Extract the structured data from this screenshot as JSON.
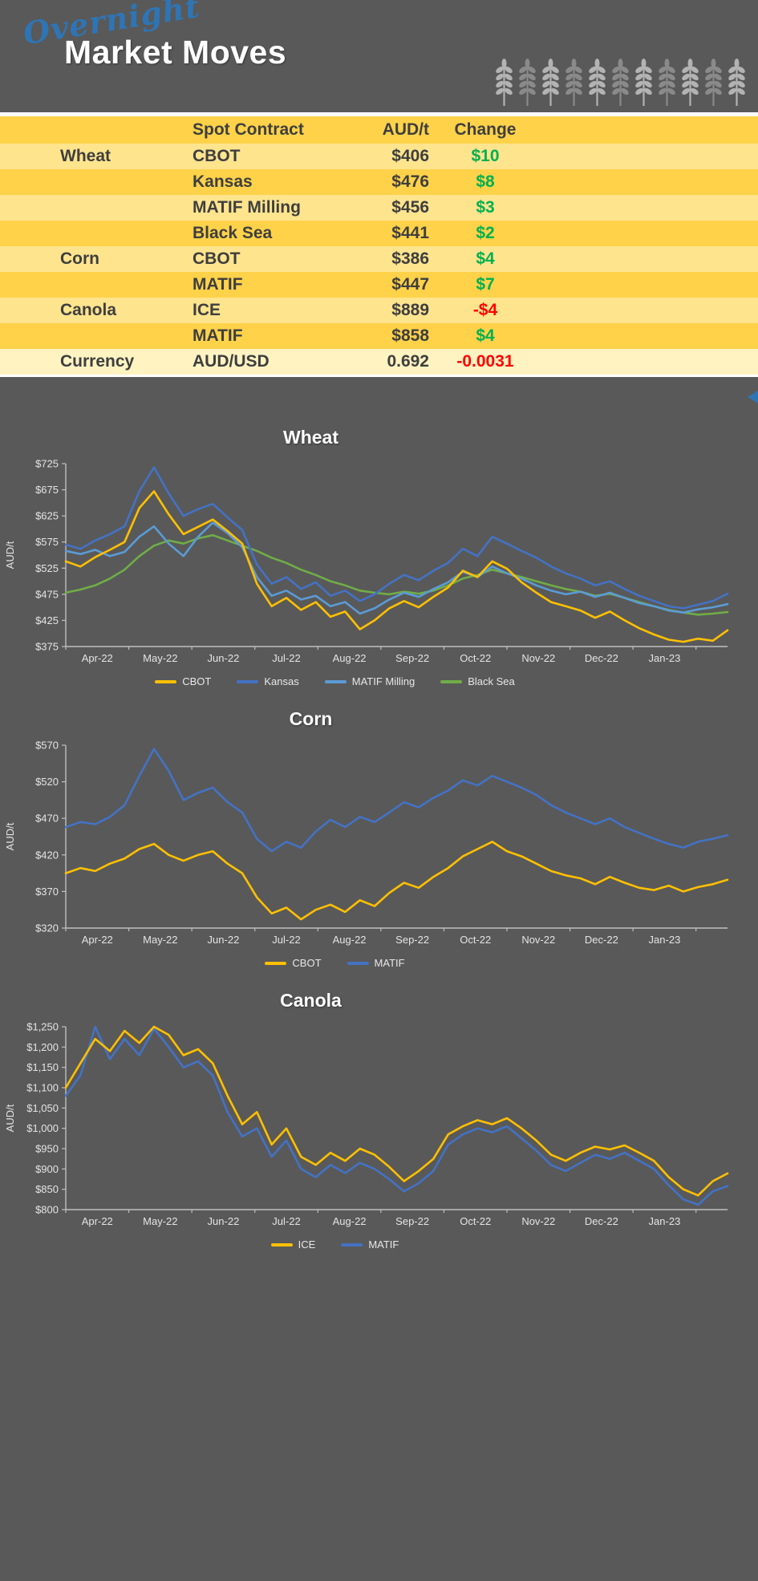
{
  "header": {
    "script_title": "Overnight",
    "main_title": "Market Moves",
    "wheat_icons": {
      "count": 11,
      "color_light": "#B3B3B3",
      "color_dark": "#8A8A8A"
    }
  },
  "table": {
    "header": {
      "spot_contract": "Spot Contract",
      "price": "AUD/t",
      "change": "Change"
    },
    "rows": [
      {
        "commodity": "Wheat",
        "contract": "CBOT",
        "price": "$406",
        "change": "$10",
        "direction": "up",
        "band": "light"
      },
      {
        "commodity": "",
        "contract": "Kansas",
        "price": "$476",
        "change": "$8",
        "direction": "up",
        "band": "gold"
      },
      {
        "commodity": "",
        "contract": "MATIF Milling",
        "price": "$456",
        "change": "$3",
        "direction": "up",
        "band": "light"
      },
      {
        "commodity": "",
        "contract": "Black Sea",
        "price": "$441",
        "change": "$2",
        "direction": "up",
        "band": "gold"
      },
      {
        "commodity": "Corn",
        "contract": "CBOT",
        "price": "$386",
        "change": "$4",
        "direction": "up",
        "band": "light"
      },
      {
        "commodity": "",
        "contract": "MATIF",
        "price": "$447",
        "change": "$7",
        "direction": "up",
        "band": "gold"
      },
      {
        "commodity": "Canola",
        "contract": "ICE",
        "price": "$889",
        "change": "-$4",
        "direction": "down",
        "band": "light"
      },
      {
        "commodity": "",
        "contract": "MATIF",
        "price": "$858",
        "change": "$4",
        "direction": "up",
        "band": "gold"
      },
      {
        "commodity": "Currency",
        "contract": "AUD/USD",
        "price": "0.692",
        "change": "-0.0031",
        "direction": "down",
        "band": "pale"
      }
    ],
    "colors": {
      "header": "#FFD24A",
      "gold": "#FFD24A",
      "light": "#FFE48E",
      "pale": "#FFF3C2",
      "text": "#3E3E3E",
      "up": "#00B050",
      "down": "#FF0000"
    }
  },
  "chart_data": [
    {
      "type": "line",
      "title": "Wheat",
      "ylabel": "AUD/t",
      "ylim": [
        375,
        725
      ],
      "ytick_step": 50,
      "tick_prefix": "$",
      "grid": false,
      "legend_position": "bottom",
      "x_labels": [
        "Apr-22",
        "May-22",
        "Jun-22",
        "Jul-22",
        "Aug-22",
        "Sep-22",
        "Oct-22",
        "Nov-22",
        "Dec-22",
        "Jan-23"
      ],
      "x_span_months": 10.5,
      "series": [
        {
          "name": "CBOT",
          "color": "#FFC000",
          "values": [
            538,
            528,
            546,
            560,
            575,
            640,
            672,
            628,
            590,
            604,
            618,
            596,
            572,
            495,
            452,
            468,
            445,
            460,
            432,
            442,
            408,
            425,
            448,
            462,
            450,
            470,
            488,
            520,
            508,
            538,
            524,
            498,
            478,
            460,
            452,
            444,
            430,
            442,
            425,
            410,
            398,
            388,
            384,
            390,
            386,
            406
          ]
        },
        {
          "name": "Kansas",
          "color": "#4472C4",
          "values": [
            570,
            562,
            578,
            590,
            605,
            672,
            718,
            668,
            625,
            638,
            648,
            622,
            598,
            532,
            495,
            508,
            485,
            498,
            472,
            482,
            462,
            475,
            495,
            512,
            502,
            520,
            535,
            562,
            548,
            585,
            572,
            558,
            545,
            528,
            515,
            505,
            492,
            500,
            485,
            472,
            462,
            452,
            448,
            455,
            462,
            476
          ]
        },
        {
          "name": "MATIF Milling",
          "color": "#5B9BD5",
          "values": [
            558,
            552,
            560,
            548,
            556,
            585,
            605,
            572,
            548,
            585,
            612,
            592,
            565,
            508,
            472,
            482,
            465,
            472,
            452,
            460,
            438,
            448,
            465,
            478,
            470,
            485,
            498,
            518,
            508,
            528,
            515,
            505,
            492,
            482,
            475,
            480,
            470,
            478,
            468,
            458,
            452,
            444,
            440,
            446,
            450,
            456
          ]
        },
        {
          "name": "Black Sea",
          "color": "#70AD47",
          "values": [
            478,
            484,
            492,
            505,
            522,
            548,
            568,
            578,
            572,
            582,
            588,
            578,
            568,
            558,
            545,
            535,
            522,
            512,
            500,
            492,
            482,
            478,
            475,
            480,
            476,
            482,
            492,
            505,
            512,
            522,
            515,
            508,
            500,
            492,
            485,
            480,
            472,
            476,
            468,
            460,
            452,
            445,
            440,
            436,
            438,
            441
          ]
        }
      ]
    },
    {
      "type": "line",
      "title": "Corn",
      "ylabel": "AUD/t",
      "ylim": [
        320,
        570
      ],
      "ytick_step": 50,
      "tick_prefix": "$",
      "grid": false,
      "legend_position": "bottom",
      "x_labels": [
        "Apr-22",
        "May-22",
        "Jun-22",
        "Jul-22",
        "Aug-22",
        "Sep-22",
        "Oct-22",
        "Nov-22",
        "Dec-22",
        "Jan-23"
      ],
      "x_span_months": 10.5,
      "series": [
        {
          "name": "CBOT",
          "color": "#FFC000",
          "values": [
            395,
            402,
            398,
            408,
            415,
            428,
            435,
            420,
            412,
            420,
            425,
            408,
            395,
            362,
            340,
            348,
            332,
            345,
            352,
            342,
            358,
            350,
            368,
            382,
            375,
            390,
            402,
            418,
            428,
            438,
            425,
            418,
            408,
            398,
            392,
            388,
            380,
            390,
            382,
            375,
            372,
            378,
            370,
            376,
            380,
            386
          ]
        },
        {
          "name": "MATIF",
          "color": "#4472C4",
          "values": [
            458,
            465,
            462,
            472,
            488,
            528,
            565,
            535,
            495,
            505,
            512,
            492,
            478,
            442,
            425,
            438,
            430,
            452,
            468,
            458,
            472,
            465,
            478,
            492,
            485,
            498,
            508,
            522,
            515,
            528,
            520,
            512,
            502,
            488,
            478,
            470,
            462,
            470,
            458,
            450,
            442,
            435,
            430,
            438,
            442,
            447
          ]
        }
      ]
    },
    {
      "type": "line",
      "title": "Canola",
      "ylabel": "AUD/t",
      "ylim": [
        800,
        1250
      ],
      "ytick_step": 50,
      "tick_prefix": "$",
      "grid": false,
      "legend_position": "bottom",
      "x_labels": [
        "Apr-22",
        "May-22",
        "Jun-22",
        "Jul-22",
        "Aug-22",
        "Sep-22",
        "Oct-22",
        "Nov-22",
        "Dec-22",
        "Jan-23"
      ],
      "x_span_months": 10.5,
      "series": [
        {
          "name": "ICE",
          "color": "#FFC000",
          "values": [
            1100,
            1160,
            1220,
            1190,
            1240,
            1210,
            1250,
            1230,
            1180,
            1195,
            1160,
            1080,
            1010,
            1040,
            960,
            1000,
            930,
            910,
            940,
            920,
            950,
            935,
            905,
            870,
            895,
            925,
            985,
            1005,
            1020,
            1010,
            1025,
            1000,
            970,
            935,
            920,
            940,
            955,
            948,
            958,
            940,
            920,
            880,
            850,
            835,
            870,
            889
          ]
        },
        {
          "name": "MATIF",
          "color": "#4472C4",
          "values": [
            1080,
            1130,
            1250,
            1170,
            1220,
            1180,
            1245,
            1200,
            1150,
            1165,
            1130,
            1040,
            980,
            1000,
            930,
            970,
            900,
            880,
            910,
            890,
            915,
            900,
            875,
            845,
            865,
            895,
            960,
            985,
            1000,
            990,
            1005,
            975,
            945,
            910,
            895,
            915,
            935,
            925,
            940,
            920,
            900,
            860,
            825,
            812,
            845,
            858
          ]
        }
      ]
    }
  ]
}
